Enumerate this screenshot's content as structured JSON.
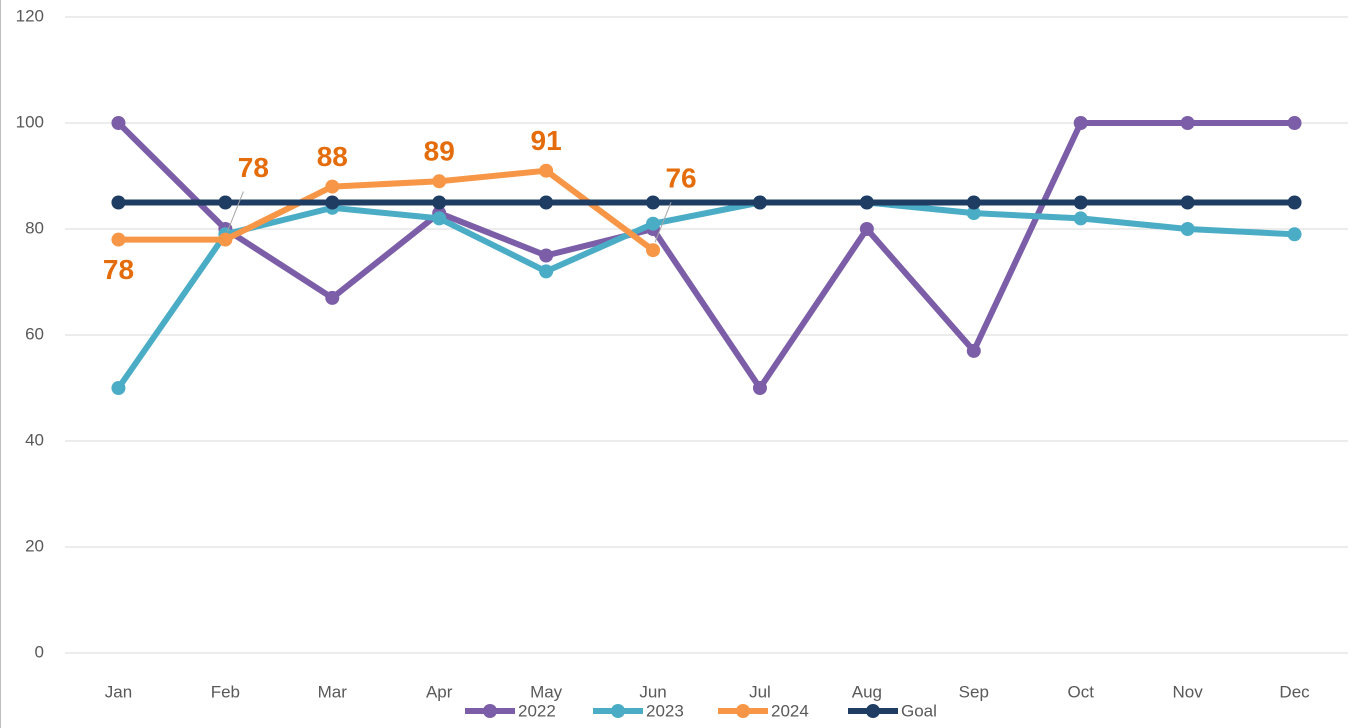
{
  "chart_data": {
    "type": "line",
    "categories": [
      "Jan",
      "Feb",
      "Mar",
      "Apr",
      "May",
      "Jun",
      "Jul",
      "Aug",
      "Sep",
      "Oct",
      "Nov",
      "Dec"
    ],
    "series": [
      {
        "name": "2022",
        "color": "#7b5ea7",
        "values": [
          100,
          80,
          67,
          83,
          75,
          80,
          50,
          80,
          57,
          100,
          100,
          100
        ]
      },
      {
        "name": "2023",
        "color": "#4bacc6",
        "values": [
          50,
          79,
          84,
          82,
          72,
          81,
          85,
          85,
          83,
          82,
          80,
          79
        ]
      },
      {
        "name": "2024",
        "color": "#f79646",
        "values": [
          78,
          78,
          88,
          89,
          91,
          76,
          null,
          null,
          null,
          null,
          null,
          null
        ],
        "data_labels": true
      },
      {
        "name": "Goal",
        "color": "#1f3c63",
        "values": [
          85,
          85,
          85,
          85,
          85,
          85,
          85,
          85,
          85,
          85,
          85,
          85
        ]
      }
    ],
    "ylim": [
      0,
      120
    ],
    "yticks": [
      0,
      20,
      40,
      60,
      80,
      100,
      120
    ],
    "grid": true,
    "legend": "bottom"
  }
}
